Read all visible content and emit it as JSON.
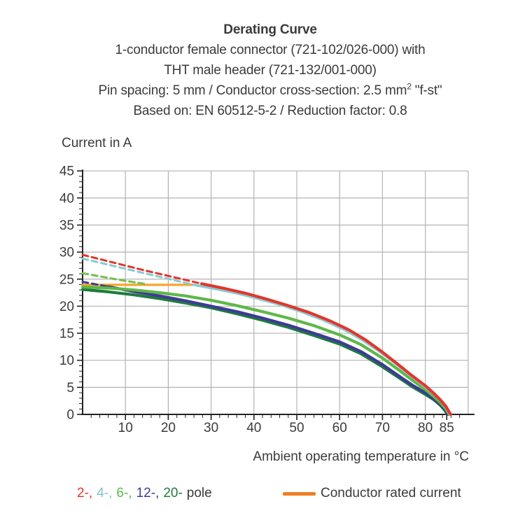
{
  "title": {
    "heading": "Derating Curve",
    "line2": "1-conductor female connector (721-102/026-000) with",
    "line3": "THT male header (721-132/001-000)",
    "line4_before": "Pin spacing: 5 mm / Conductor cross-section: 2.5 mm",
    "line4_sup": "2",
    "line4_after": " \"f-st\"",
    "line5": "Based on: EN 60512-5-2 / Reduction factor: 0.8"
  },
  "y_axis": {
    "title": "Current in A"
  },
  "x_axis": {
    "title": "Ambient operating temperature in °C"
  },
  "legend": {
    "pole_items": [
      {
        "label": "2-,",
        "color": "#e5352b"
      },
      {
        "label": "4-,",
        "color": "#7cc5cf"
      },
      {
        "label": "6-,",
        "color": "#5eb848"
      },
      {
        "label": "12-,",
        "color": "#3c3c96"
      },
      {
        "label": "20-",
        "color": "#1f7a3d"
      }
    ],
    "pole_suffix": "pole",
    "rated_current_label": "Conductor rated current",
    "rated_current_color": "#ee7f22"
  },
  "chart_data": {
    "type": "line",
    "title": "Derating Curve",
    "xlabel": "Ambient operating temperature in °C",
    "ylabel": "Current in A",
    "xlim": [
      0,
      90
    ],
    "ylim": [
      0,
      45
    ],
    "x_major_tick_labels": [
      10,
      20,
      30,
      40,
      50,
      60,
      70,
      80,
      85
    ],
    "x_grid_lines": [
      10,
      20,
      30,
      40,
      50,
      60,
      70,
      80,
      90
    ],
    "x_minor_step": 2,
    "y_major_tick_labels": [
      0,
      5,
      10,
      15,
      20,
      25,
      30,
      35,
      40,
      45
    ],
    "y_grid_lines": [
      5,
      10,
      15,
      20,
      25,
      30,
      35,
      40,
      45
    ],
    "y_minor_step": 1,
    "grid": true,
    "legend_position": "bottom",
    "series": [
      {
        "name": "conductor-rated-current",
        "color": "#f8a42c",
        "style": "solid",
        "width": 3.2,
        "points": [
          [
            0,
            23.95
          ],
          [
            26,
            23.95
          ]
        ]
      },
      {
        "name": "12-pole-dashed",
        "color": "#3c3c96",
        "style": "dashed",
        "width": 3,
        "points": [
          [
            0,
            24.5
          ],
          [
            6,
            23.6
          ]
        ]
      },
      {
        "name": "6-pole-dashed",
        "color": "#6fc052",
        "style": "dashed",
        "width": 3,
        "points": [
          [
            0,
            26.1
          ],
          [
            8,
            24.95
          ],
          [
            15,
            24.05
          ]
        ]
      },
      {
        "name": "4-pole-dashed",
        "color": "#84ccd4",
        "style": "dashed",
        "width": 3,
        "points": [
          [
            0,
            28.8
          ],
          [
            13,
            26.35
          ],
          [
            26,
            23.95
          ]
        ]
      },
      {
        "name": "2-pole-dashed",
        "color": "#e5352b",
        "style": "dashed",
        "width": 3,
        "points": [
          [
            0,
            29.5
          ],
          [
            14,
            26.7
          ],
          [
            27.8,
            24.15
          ]
        ]
      },
      {
        "name": "20-pole",
        "color": "#1f7a3d",
        "style": "solid",
        "width": 4.2,
        "points": [
          [
            0,
            23.1
          ],
          [
            6,
            22.65
          ],
          [
            12,
            22.1
          ],
          [
            18,
            21.4
          ],
          [
            24,
            20.6
          ],
          [
            30,
            19.7
          ],
          [
            36,
            18.6
          ],
          [
            42,
            17.4
          ],
          [
            48,
            16.1
          ],
          [
            54,
            14.6
          ],
          [
            60,
            13.0
          ],
          [
            65,
            11.2
          ],
          [
            70,
            8.8
          ],
          [
            74,
            6.7
          ],
          [
            77,
            5.1
          ],
          [
            80,
            3.7
          ],
          [
            82,
            2.7
          ],
          [
            83.5,
            1.7
          ],
          [
            84.5,
            0.8
          ],
          [
            85.2,
            0
          ]
        ]
      },
      {
        "name": "12-pole",
        "color": "#3c3c96",
        "style": "solid",
        "width": 4.2,
        "points": [
          [
            6,
            23.6
          ],
          [
            12,
            22.7
          ],
          [
            18,
            21.9
          ],
          [
            24,
            21.0
          ],
          [
            30,
            20.0
          ],
          [
            36,
            19.0
          ],
          [
            42,
            17.8
          ],
          [
            48,
            16.5
          ],
          [
            54,
            15.0
          ],
          [
            60,
            13.4
          ],
          [
            65,
            11.6
          ],
          [
            70,
            9.2
          ],
          [
            74,
            7.0
          ],
          [
            77,
            5.4
          ],
          [
            80,
            4.0
          ],
          [
            82,
            2.9
          ],
          [
            83.5,
            1.9
          ],
          [
            84.6,
            0.9
          ],
          [
            85.3,
            0
          ]
        ]
      },
      {
        "name": "6-pole",
        "color": "#5eb848",
        "style": "solid",
        "width": 4.2,
        "points": [
          [
            0,
            23.55
          ],
          [
            6,
            23.35
          ],
          [
            12,
            23.0
          ],
          [
            18,
            22.5
          ],
          [
            24,
            21.9
          ],
          [
            30,
            21.1
          ],
          [
            36,
            20.1
          ],
          [
            42,
            19.0
          ],
          [
            48,
            17.8
          ],
          [
            54,
            16.4
          ],
          [
            60,
            14.7
          ],
          [
            65,
            12.9
          ],
          [
            70,
            10.4
          ],
          [
            74,
            8.1
          ],
          [
            77,
            6.3
          ],
          [
            80,
            4.6
          ],
          [
            82,
            3.3
          ],
          [
            83.5,
            2.2
          ],
          [
            84.7,
            1.1
          ],
          [
            85.6,
            0
          ]
        ]
      },
      {
        "name": "4-pole",
        "color": "#84ccd4",
        "style": "solid",
        "width": 3.6,
        "points": [
          [
            26,
            23.95
          ],
          [
            31,
            23.2
          ],
          [
            36,
            22.4
          ],
          [
            41,
            21.4
          ],
          [
            46,
            20.3
          ],
          [
            51,
            19.0
          ],
          [
            56,
            17.5
          ],
          [
            61,
            15.7
          ],
          [
            65,
            13.9
          ],
          [
            69,
            11.8
          ],
          [
            73,
            9.4
          ],
          [
            76,
            7.5
          ],
          [
            79,
            5.7
          ],
          [
            81,
            4.4
          ],
          [
            83,
            3.1
          ],
          [
            84.5,
            1.8
          ],
          [
            85.7,
            0
          ]
        ]
      },
      {
        "name": "2-pole",
        "color": "#e5352b",
        "style": "solid",
        "width": 4.2,
        "points": [
          [
            27.8,
            24.15
          ],
          [
            33,
            23.3
          ],
          [
            38,
            22.4
          ],
          [
            43,
            21.3
          ],
          [
            48,
            20.1
          ],
          [
            53,
            18.8
          ],
          [
            58,
            17.2
          ],
          [
            62,
            15.7
          ],
          [
            66,
            13.8
          ],
          [
            70,
            11.5
          ],
          [
            74,
            9.0
          ],
          [
            77,
            7.1
          ],
          [
            80,
            5.3
          ],
          [
            82,
            3.9
          ],
          [
            83.5,
            2.7
          ],
          [
            84.8,
            1.5
          ],
          [
            85.9,
            0
          ]
        ]
      }
    ]
  }
}
